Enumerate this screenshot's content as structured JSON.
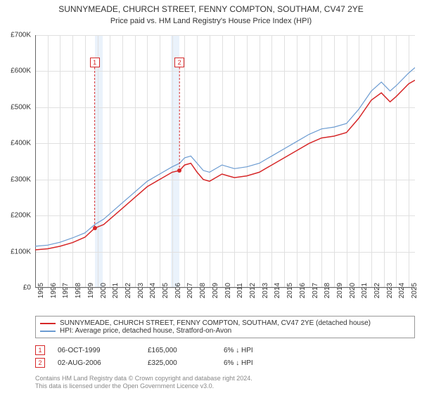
{
  "title": "SUNNYMEADE, CHURCH STREET, FENNY COMPTON, SOUTHAM, CV47 2YE",
  "subtitle": "Price paid vs. HM Land Registry's House Price Index (HPI)",
  "chart": {
    "type": "line",
    "xlim": [
      1995,
      2025.5
    ],
    "ylim": [
      0,
      700000
    ],
    "ytick_step": 100000,
    "yticks_labels": [
      "£0",
      "£100K",
      "£200K",
      "£300K",
      "£400K",
      "£500K",
      "£600K",
      "£700K"
    ],
    "xticks": [
      1995,
      1996,
      1997,
      1998,
      1999,
      2000,
      2001,
      2002,
      2003,
      2004,
      2005,
      2006,
      2007,
      2008,
      2009,
      2010,
      2011,
      2012,
      2013,
      2014,
      2015,
      2016,
      2017,
      2018,
      2019,
      2020,
      2021,
      2022,
      2023,
      2024,
      2025
    ],
    "background_color": "#ffffff",
    "grid_color": "#e0e0e0",
    "shade_color": "#eaf2fb",
    "shade_bands": [
      [
        1999.78,
        2000.4
      ],
      [
        2005.9,
        2006.6
      ]
    ],
    "series": [
      {
        "name": "property",
        "color": "#d62728",
        "width": 1.5,
        "points": [
          [
            1995,
            105000
          ],
          [
            1996,
            108000
          ],
          [
            1997,
            115000
          ],
          [
            1998,
            125000
          ],
          [
            1999,
            140000
          ],
          [
            1999.78,
            165000
          ],
          [
            2000.5,
            175000
          ],
          [
            2001,
            190000
          ],
          [
            2002,
            220000
          ],
          [
            2003,
            250000
          ],
          [
            2004,
            280000
          ],
          [
            2005,
            300000
          ],
          [
            2006,
            320000
          ],
          [
            2006.6,
            325000
          ],
          [
            2007,
            340000
          ],
          [
            2007.5,
            345000
          ],
          [
            2008,
            320000
          ],
          [
            2008.5,
            300000
          ],
          [
            2009,
            295000
          ],
          [
            2010,
            315000
          ],
          [
            2010.5,
            310000
          ],
          [
            2011,
            305000
          ],
          [
            2012,
            310000
          ],
          [
            2013,
            320000
          ],
          [
            2014,
            340000
          ],
          [
            2015,
            360000
          ],
          [
            2016,
            380000
          ],
          [
            2017,
            400000
          ],
          [
            2018,
            415000
          ],
          [
            2019,
            420000
          ],
          [
            2020,
            430000
          ],
          [
            2021,
            470000
          ],
          [
            2022,
            520000
          ],
          [
            2022.8,
            540000
          ],
          [
            2023.5,
            515000
          ],
          [
            2024,
            530000
          ],
          [
            2025,
            565000
          ],
          [
            2025.5,
            575000
          ]
        ]
      },
      {
        "name": "hpi",
        "color": "#6b9bd1",
        "width": 1.2,
        "points": [
          [
            1995,
            115000
          ],
          [
            1996,
            118000
          ],
          [
            1997,
            126000
          ],
          [
            1998,
            138000
          ],
          [
            1999,
            152000
          ],
          [
            1999.78,
            175000
          ],
          [
            2000.5,
            190000
          ],
          [
            2001,
            205000
          ],
          [
            2002,
            235000
          ],
          [
            2003,
            265000
          ],
          [
            2004,
            295000
          ],
          [
            2005,
            315000
          ],
          [
            2006,
            335000
          ],
          [
            2006.6,
            345000
          ],
          [
            2007,
            360000
          ],
          [
            2007.5,
            365000
          ],
          [
            2008,
            345000
          ],
          [
            2008.5,
            325000
          ],
          [
            2009,
            320000
          ],
          [
            2010,
            340000
          ],
          [
            2010.5,
            335000
          ],
          [
            2011,
            330000
          ],
          [
            2012,
            335000
          ],
          [
            2013,
            345000
          ],
          [
            2014,
            365000
          ],
          [
            2015,
            385000
          ],
          [
            2016,
            405000
          ],
          [
            2017,
            425000
          ],
          [
            2018,
            440000
          ],
          [
            2019,
            445000
          ],
          [
            2020,
            455000
          ],
          [
            2021,
            495000
          ],
          [
            2022,
            545000
          ],
          [
            2022.8,
            570000
          ],
          [
            2023.5,
            545000
          ],
          [
            2024,
            560000
          ],
          [
            2025,
            595000
          ],
          [
            2025.5,
            610000
          ]
        ]
      }
    ],
    "markers": [
      {
        "n": "1",
        "x": 1999.78,
        "y": 165000,
        "box_y": 638000,
        "color": "#d62728"
      },
      {
        "n": "2",
        "x": 2006.59,
        "y": 325000,
        "box_y": 638000,
        "color": "#d62728"
      }
    ]
  },
  "legend": {
    "items": [
      {
        "color": "#d62728",
        "label": "SUNNYMEADE, CHURCH STREET, FENNY COMPTON, SOUTHAM, CV47 2YE (detached house)"
      },
      {
        "color": "#6b9bd1",
        "label": "HPI: Average price, detached house, Stratford-on-Avon"
      }
    ]
  },
  "sales": [
    {
      "n": "1",
      "date": "06-OCT-1999",
      "price": "£165,000",
      "diff": "6% ↓ HPI"
    },
    {
      "n": "2",
      "date": "02-AUG-2006",
      "price": "£325,000",
      "diff": "6% ↓ HPI"
    }
  ],
  "footer_line1": "Contains HM Land Registry data © Crown copyright and database right 2024.",
  "footer_line2": "This data is licensed under the Open Government Licence v3.0."
}
